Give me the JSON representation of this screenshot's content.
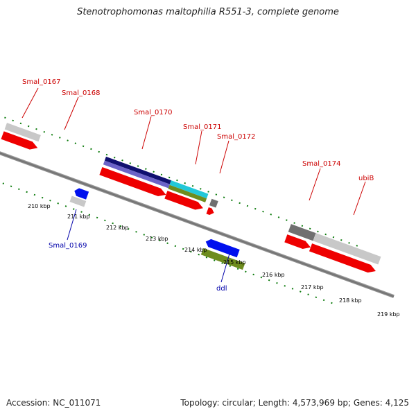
{
  "title": "Stenotrophomonas maltophilia R551-3, complete genome",
  "footer": {
    "accession": "Accession: NC_011071",
    "topology": "Topology: circular; Length: 4,573,969 bp; Genes: 4,125"
  },
  "ticks": [
    "210 kbp",
    "211 kbp",
    "212 kbp",
    "213 kbp",
    "214 kbp",
    "215 kbp",
    "216 kbp",
    "217 kbp",
    "218 kbp",
    "219 kbp"
  ],
  "gene_labels": {
    "smal_0167": "Smal_0167",
    "smal_0168": "Smal_0168",
    "smal_0169": "Smal_0169",
    "smal_0170": "Smal_0170",
    "smal_0171": "Smal_0171",
    "smal_0172": "Smal_0172",
    "smal_0174": "Smal_0174",
    "ubib": "ubiB",
    "ddl": "ddl"
  },
  "colors": {
    "red_label": "#cc0000",
    "blue_label": "#0000aa",
    "cds_red": "#ee0000",
    "cog_purple": "#6b63c8",
    "cog_navy": "#101070",
    "cog_cyan": "#22c8d8",
    "cog_olive": "#6e8c1e",
    "cog_blue": "#0010ee",
    "cog_lightgray": "#c8c8c8",
    "cog_darkgray": "#707070",
    "backbone": "#808080",
    "tick_green": "#0a7a0a"
  }
}
